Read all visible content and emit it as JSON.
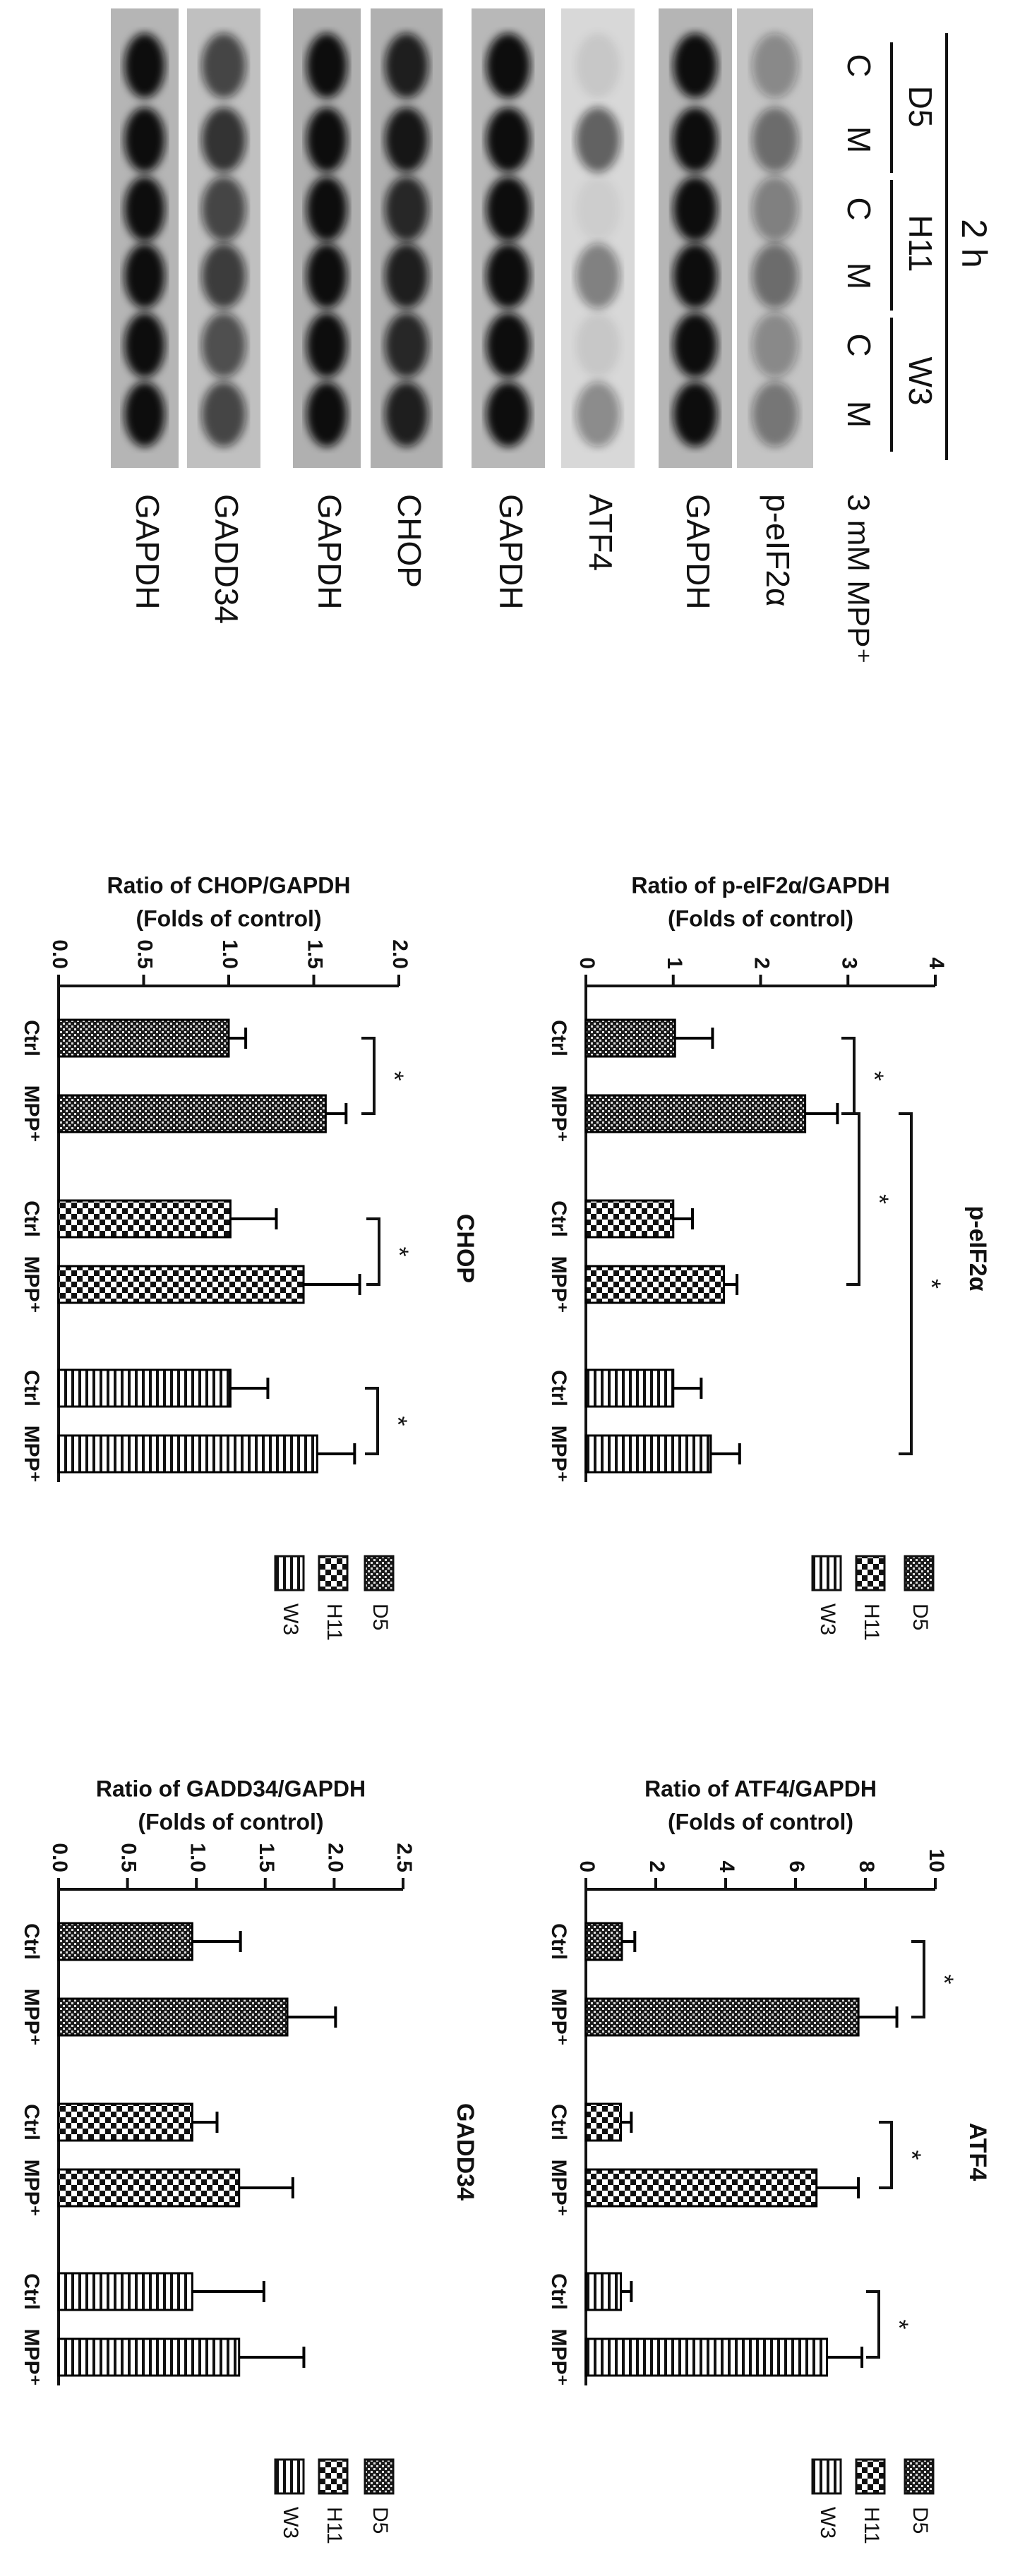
{
  "blot": {
    "header": "2 h",
    "groups": [
      "D5",
      "H11",
      "W3"
    ],
    "lanes": [
      "C",
      "M",
      "C",
      "M",
      "C",
      "M"
    ],
    "treatment": "3 mM MPP⁺",
    "rows": [
      "p-eIF2α",
      "GAPDH",
      "ATF4",
      "GAPDH",
      "CHOP",
      "GAPDH",
      "GADD34",
      "GAPDH"
    ]
  },
  "chart_data": [
    {
      "type": "bar",
      "title": "p-eIF2α",
      "ylabel": "Ratio of p-eIF2α/GAPDH",
      "ylabel2": "(Folds of control)",
      "categories": [
        "Ctrl",
        "MPP⁺"
      ],
      "ylim": [
        0,
        4
      ],
      "yticks": [
        0,
        1,
        2,
        3,
        4
      ],
      "series": [
        {
          "name": "D5",
          "color": "#000000",
          "values": [
            1.02,
            2.51
          ],
          "errors": [
            0.43,
            0.37
          ]
        },
        {
          "name": "H11",
          "color": "#000000",
          "values": [
            1.0,
            1.58
          ],
          "errors": [
            0.22,
            0.15
          ]
        },
        {
          "name": "W3",
          "color": "#000000",
          "values": [
            1.0,
            1.43
          ],
          "errors": [
            0.32,
            0.33
          ]
        }
      ],
      "annotations": [
        "*",
        "*",
        "*"
      ]
    },
    {
      "type": "bar",
      "title": "ATF4",
      "ylabel": "Ratio of ATF4/GAPDH",
      "ylabel2": "(Folds of control)",
      "categories": [
        "Ctrl",
        "MPP⁺"
      ],
      "ylim": [
        0,
        10
      ],
      "yticks": [
        0,
        2,
        4,
        6,
        8,
        10
      ],
      "series": [
        {
          "name": "D5",
          "color": "#000000",
          "values": [
            1.03,
            7.8
          ],
          "errors": [
            0.37,
            1.1
          ]
        },
        {
          "name": "H11",
          "color": "#000000",
          "values": [
            1.0,
            6.6
          ],
          "errors": [
            0.3,
            1.2
          ]
        },
        {
          "name": "W3",
          "color": "#000000",
          "values": [
            1.0,
            6.9
          ],
          "errors": [
            0.3,
            1.0
          ]
        }
      ],
      "annotations": [
        "*",
        "*",
        "*"
      ]
    },
    {
      "type": "bar",
      "title": "CHOP",
      "ylabel": "Ratio of CHOP/GAPDH",
      "ylabel2": "(Folds of control)",
      "categories": [
        "Ctrl",
        "MPP⁺"
      ],
      "ylim": [
        0,
        2
      ],
      "yticks": [
        {
          "value": 0,
          "label": "0.0"
        },
        0.5,
        {
          "value": 1,
          "label": "1.0"
        },
        1.5,
        {
          "value": 2,
          "label": "2.0"
        }
      ],
      "series": [
        {
          "name": "D5",
          "color": "#000000",
          "values": [
            1.0,
            1.57
          ],
          "errors": [
            0.1,
            0.12
          ]
        },
        {
          "name": "H11",
          "color": "#000000",
          "values": [
            1.01,
            1.44
          ],
          "errors": [
            0.27,
            0.33
          ]
        },
        {
          "name": "W3",
          "color": "#000000",
          "values": [
            1.01,
            1.52
          ],
          "errors": [
            0.22,
            0.22
          ]
        }
      ],
      "annotations": [
        "*",
        "*",
        "*"
      ]
    },
    {
      "type": "bar",
      "title": "GADD34",
      "ylabel": "Ratio of GADD34/GAPDH",
      "ylabel2": "(Folds of control)",
      "categories": [
        "Ctrl",
        "MPP⁺"
      ],
      "ylim": [
        0,
        2.5
      ],
      "yticks": [
        {
          "value": 0,
          "label": "0.0"
        },
        0.5,
        {
          "value": 1,
          "label": "1.0"
        },
        1.5,
        {
          "value": 2,
          "label": "2.0"
        },
        2.5
      ],
      "series": [
        {
          "name": "D5",
          "color": "#000000",
          "values": [
            0.97,
            1.66
          ],
          "errors": [
            0.35,
            0.35
          ]
        },
        {
          "name": "H11",
          "color": "#000000",
          "values": [
            0.97,
            1.31
          ],
          "errors": [
            0.18,
            0.39
          ]
        },
        {
          "name": "W3",
          "color": "#000000",
          "values": [
            0.97,
            1.31
          ],
          "errors": [
            0.52,
            0.47
          ]
        }
      ],
      "annotations": []
    }
  ]
}
